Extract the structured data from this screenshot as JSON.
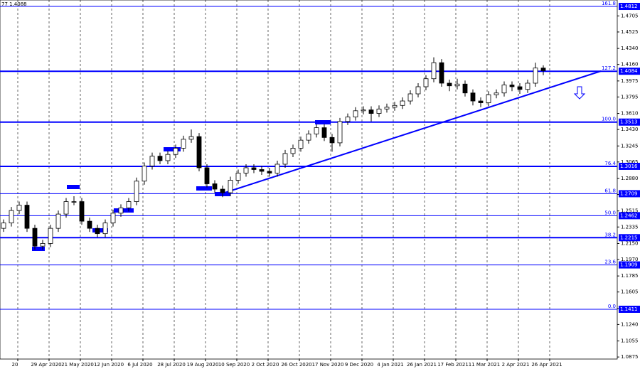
{
  "chart_data": {
    "type": "candlestick",
    "title": "77 1.4088",
    "categories": [
      "20",
      null,
      null,
      null,
      "29 Apr 2020",
      null,
      null,
      null,
      "21 May 2020",
      null,
      null,
      null,
      "12 Jun 2020",
      null,
      null,
      null,
      "6 Jul 2020",
      null,
      null,
      null,
      "28 Jul 2020",
      null,
      null,
      null,
      "19 Aug 2020",
      null,
      null,
      null,
      "10 Sep 2020",
      null,
      null,
      null,
      "2 Oct 2020",
      null,
      null,
      null,
      "26 Oct 2020",
      null,
      null,
      null,
      "17 Nov 2020",
      null,
      null,
      null,
      "9 Dec 2020",
      null,
      null,
      null,
      "4 Jan 2021",
      null,
      null,
      null,
      "26 Jan 2021",
      null,
      null,
      null,
      "17 Feb 2021",
      null,
      null,
      null,
      "11 Mar 2021",
      null,
      null,
      null,
      "2 Apr 2021",
      null,
      null,
      null,
      "26 Apr 2021",
      null
    ],
    "open": [
      1.232,
      1.238,
      1.252,
      1.258,
      1.232,
      1.212,
      1.215,
      1.232,
      1.248,
      1.262,
      1.262,
      1.24,
      1.232,
      1.226,
      1.238,
      1.249,
      1.255,
      1.262,
      1.285,
      1.302,
      1.313,
      1.308,
      1.315,
      1.322,
      1.332,
      1.335,
      1.3,
      1.282,
      1.276,
      1.272,
      1.286,
      1.294,
      1.3,
      1.298,
      1.296,
      1.294,
      1.304,
      1.316,
      1.322,
      1.331,
      1.338,
      1.345,
      1.334,
      1.328,
      1.352,
      1.357,
      1.364,
      1.365,
      1.361,
      1.366,
      1.368,
      1.37,
      1.375,
      1.383,
      1.391,
      1.4,
      1.418,
      1.395,
      1.392,
      1.394,
      1.384,
      1.375,
      1.373,
      1.382,
      1.384,
      1.393,
      1.391,
      1.388,
      1.395,
      1.412
    ],
    "high": [
      1.242,
      1.256,
      1.262,
      1.262,
      1.236,
      1.219,
      1.236,
      1.252,
      1.266,
      1.268,
      1.266,
      1.244,
      1.236,
      1.242,
      1.253,
      1.259,
      1.266,
      1.289,
      1.306,
      1.317,
      1.317,
      1.319,
      1.326,
      1.336,
      1.343,
      1.339,
      1.304,
      1.286,
      1.28,
      1.29,
      1.298,
      1.304,
      1.304,
      1.302,
      1.3,
      1.308,
      1.32,
      1.326,
      1.335,
      1.342,
      1.349,
      1.349,
      1.338,
      1.356,
      1.361,
      1.368,
      1.369,
      1.369,
      1.37,
      1.372,
      1.374,
      1.379,
      1.387,
      1.395,
      1.404,
      1.424,
      1.422,
      1.399,
      1.4,
      1.398,
      1.388,
      1.379,
      1.386,
      1.388,
      1.397,
      1.397,
      1.395,
      1.399,
      1.418,
      1.415
    ],
    "low": [
      1.228,
      1.234,
      1.248,
      1.228,
      1.208,
      1.208,
      1.211,
      1.228,
      1.244,
      1.258,
      1.236,
      1.228,
      1.222,
      1.222,
      1.234,
      1.245,
      1.251,
      1.258,
      1.281,
      1.298,
      1.304,
      1.304,
      1.311,
      1.318,
      1.328,
      1.296,
      1.278,
      1.272,
      1.267,
      1.268,
      1.282,
      1.29,
      1.294,
      1.292,
      1.29,
      1.29,
      1.3,
      1.312,
      1.318,
      1.327,
      1.334,
      1.33,
      1.318,
      1.324,
      1.348,
      1.353,
      1.36,
      1.352,
      1.357,
      1.362,
      1.364,
      1.366,
      1.371,
      1.379,
      1.387,
      1.396,
      1.391,
      1.386,
      1.388,
      1.38,
      1.37,
      1.368,
      1.369,
      1.378,
      1.38,
      1.386,
      1.383,
      1.384,
      1.391,
      1.404
    ],
    "close": [
      1.238,
      1.252,
      1.258,
      1.232,
      1.212,
      1.215,
      1.232,
      1.248,
      1.262,
      1.262,
      1.24,
      1.232,
      1.226,
      1.238,
      1.249,
      1.255,
      1.262,
      1.285,
      1.302,
      1.313,
      1.308,
      1.315,
      1.322,
      1.332,
      1.335,
      1.3,
      1.282,
      1.276,
      1.272,
      1.286,
      1.294,
      1.3,
      1.298,
      1.296,
      1.294,
      1.304,
      1.316,
      1.322,
      1.331,
      1.338,
      1.345,
      1.334,
      1.328,
      1.352,
      1.357,
      1.364,
      1.365,
      1.361,
      1.366,
      1.368,
      1.37,
      1.375,
      1.383,
      1.391,
      1.4,
      1.418,
      1.395,
      1.392,
      1.394,
      1.384,
      1.375,
      1.373,
      1.382,
      1.384,
      1.393,
      1.391,
      1.388,
      1.395,
      1.412,
      1.409
    ],
    "ylim": [
      1.0852,
      1.4884
    ],
    "yticks": [
      1.4705,
      1.4525,
      {
        "value": 1.434,
        "label": "1.4340"
      },
      {
        "value": 1.416,
        "label": "1.4160"
      },
      1.3975,
      1.3795,
      {
        "value": 1.361,
        "label": "1.3610"
      },
      {
        "value": 1.343,
        "label": "1.3430"
      },
      1.3245,
      1.3065,
      {
        "value": 1.288,
        "label": "1.2880"
      },
      {
        "value": 1.27,
        "label": "1.2700"
      },
      1.2515,
      1.2335,
      {
        "value": 1.215,
        "label": "1.2150"
      },
      {
        "value": 1.197,
        "label": "1.1970"
      },
      1.1785,
      1.1605,
      {
        "value": 1.142,
        "label": "1.1420"
      },
      {
        "value": 1.124,
        "label": "1.1240"
      },
      1.1055,
      1.0875
    ],
    "levels": [
      {
        "name": "161.8",
        "value": 1.4812,
        "bold": false
      },
      {
        "name": "127.2",
        "value": 1.4084,
        "bold": true
      },
      {
        "name": "100.0",
        "value": 1.3513,
        "bold": true
      },
      {
        "name": "76.4",
        "value": 1.3016,
        "bold": true
      },
      {
        "name": "61.8",
        "value": 1.2709,
        "bold": false
      },
      {
        "name": "50.0",
        "value": 1.2462,
        "bold": false
      },
      {
        "name": "38.2",
        "value": 1.2215,
        "bold": true
      },
      {
        "name": "23.6",
        "value": 1.1909,
        "bold": false
      },
      {
        "name": "0.0",
        "value": 1.1411,
        "bold": false
      }
    ],
    "level_color": "#0000ff",
    "bull_color": "#ffffff",
    "bear_color": "#000000"
  }
}
